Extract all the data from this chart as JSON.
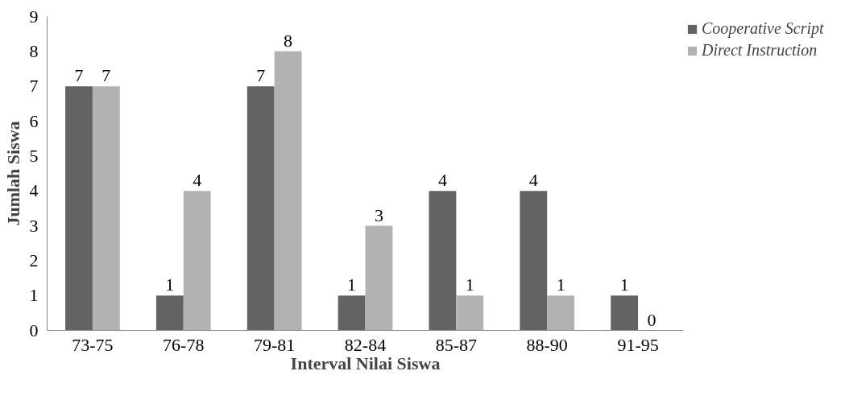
{
  "chart_data": {
    "type": "bar",
    "xlabel": "Interval Nilai Siswa",
    "ylabel": "Jumlah Siswa",
    "categories": [
      "73-75",
      "76-78",
      "79-81",
      "82-84",
      "85-87",
      "88-90",
      "91-95"
    ],
    "series": [
      {
        "name": "Cooperative Script",
        "color": "#636363",
        "values": [
          7,
          1,
          7,
          1,
          4,
          4,
          1
        ]
      },
      {
        "name": "Direct Instruction",
        "color": "#b2b2b2",
        "values": [
          7,
          4,
          8,
          3,
          1,
          1,
          0
        ]
      }
    ],
    "ylim": [
      0,
      9
    ],
    "yticks": [
      0,
      1,
      2,
      3,
      4,
      5,
      6,
      7,
      8,
      9
    ],
    "grid": false,
    "legend": "top right",
    "data_labels": true
  }
}
